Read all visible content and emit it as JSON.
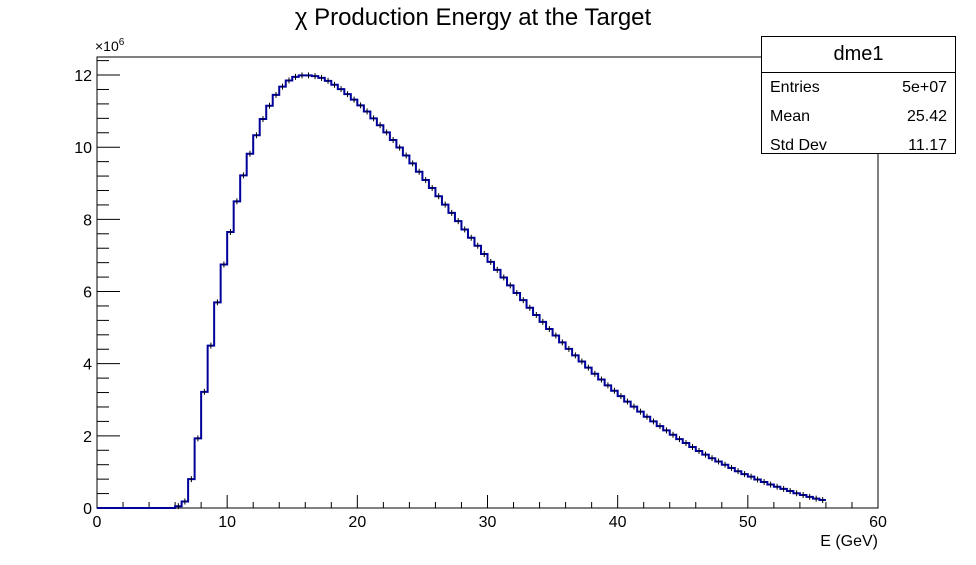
{
  "chart_data": {
    "type": "histogram",
    "title": "χ Production Energy at the Target",
    "xlabel": "E (GeV)",
    "ylabel": "",
    "xlim": [
      0,
      60
    ],
    "ylim": [
      0,
      12500000
    ],
    "y_multiplier_label": "×10",
    "y_multiplier_exponent": "6",
    "x_ticks": [
      "0",
      "10",
      "20",
      "30",
      "40",
      "50",
      "60"
    ],
    "y_ticks": [
      "0",
      "2",
      "4",
      "6",
      "8",
      "10",
      "12"
    ],
    "bin_width": 0.5,
    "bin_start": 0,
    "values_millions": [
      0,
      0,
      0,
      0,
      0,
      0,
      0,
      0,
      0,
      0,
      0,
      0,
      0.05,
      0.18,
      0.8,
      1.93,
      3.22,
      4.5,
      5.7,
      6.75,
      7.65,
      8.5,
      9.22,
      9.82,
      10.33,
      10.78,
      11.15,
      11.45,
      11.68,
      11.85,
      11.95,
      11.99,
      11.99,
      11.97,
      11.92,
      11.84,
      11.73,
      11.61,
      11.47,
      11.32,
      11.16,
      10.99,
      10.8,
      10.61,
      10.41,
      10.2,
      9.99,
      9.77,
      9.55,
      9.32,
      9.09,
      8.87,
      8.64,
      8.41,
      8.18,
      7.95,
      7.72,
      7.49,
      7.27,
      7.04,
      6.82,
      6.6,
      6.39,
      6.17,
      5.96,
      5.76,
      5.55,
      5.35,
      5.16,
      4.96,
      4.78,
      4.59,
      4.41,
      4.23,
      4.06,
      3.89,
      3.72,
      3.56,
      3.4,
      3.25,
      3.1,
      2.95,
      2.81,
      2.67,
      2.53,
      2.4,
      2.27,
      2.15,
      2.03,
      1.91,
      1.8,
      1.69,
      1.58,
      1.48,
      1.38,
      1.29,
      1.2,
      1.11,
      1.02,
      0.94,
      0.87,
      0.79,
      0.72,
      0.65,
      0.59,
      0.53,
      0.47,
      0.41,
      0.36,
      0.31,
      0.26,
      0.22
    ],
    "line_color": "#000099",
    "stats": {
      "name": "dme1",
      "rows": [
        {
          "label": "Entries",
          "value": "5e+07"
        },
        {
          "label": "Mean",
          "value": "25.42"
        },
        {
          "label": "Std Dev",
          "value": "11.17"
        }
      ]
    }
  }
}
